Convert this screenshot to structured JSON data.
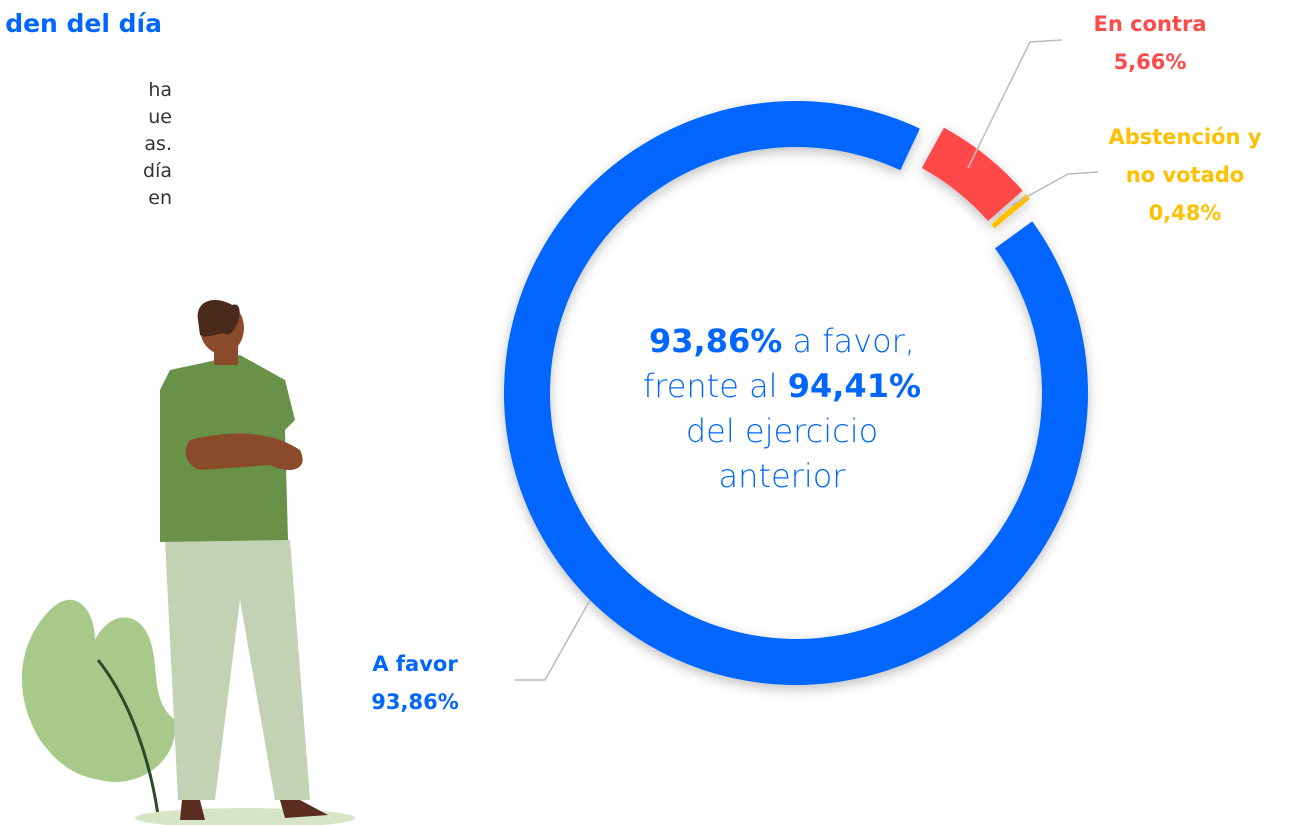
{
  "heading": "den del día",
  "paragraph_fragments": [
    "ha",
    "ue",
    "as.",
    "día",
    "en"
  ],
  "chart_data": {
    "type": "donut",
    "categories": [
      "A favor",
      "En contra",
      "Abstención y no votado"
    ],
    "values": [
      93.86,
      5.66,
      0.48
    ],
    "value_labels": [
      "93,86%",
      "5,66%",
      "0,48%"
    ],
    "colors": [
      "#0066ff",
      "#ff4a4a",
      "#ffc000"
    ],
    "center_text": [
      [
        {
          "text": "93,86%",
          "bold": true
        },
        {
          "text": " a favor,"
        }
      ],
      [
        {
          "text": "frente al "
        },
        {
          "text": "94,41%",
          "bold": true
        }
      ],
      [
        {
          "text": "del ejercicio"
        }
      ],
      [
        {
          "text": "anterior"
        }
      ]
    ]
  }
}
